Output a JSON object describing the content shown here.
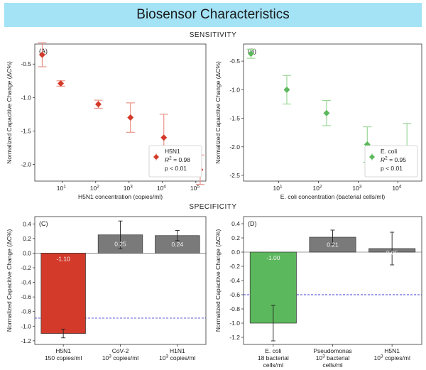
{
  "header": {
    "title": "Biosensor Characteristics"
  },
  "sections": {
    "top": "SENSITIVITY",
    "bottom": "SPECIFICITY"
  },
  "colors": {
    "red": "#d33a2a",
    "red_light": "#e88a80",
    "green": "#5cb85c",
    "green_light": "#94d48f",
    "gray": "#7a7a7a",
    "blue_dash": "#3f3fd8"
  },
  "chart_data": [
    {
      "type": "scatter",
      "panel_label": "(A)",
      "xlabel": "H5N1 concentration (copies/ml)",
      "ylabel": "Normalized Capacitive Change (ΔC%)",
      "xscale": "log",
      "xlim": [
        1.5,
        200000
      ],
      "ylim": [
        -0.2,
        -2.25
      ],
      "yticks": [
        -0.5,
        -1.0,
        -1.5,
        -2.0
      ],
      "ytick_labels": [
        "-0.5",
        "-1.0",
        "-1.5",
        "-2.0"
      ],
      "xticks": [
        10,
        100,
        1000,
        10000,
        100000
      ],
      "xtick_labels": [
        "10^1",
        "10^2",
        "10^3",
        "10^4",
        "10^5"
      ],
      "series": [
        {
          "name": "H5N1",
          "x": [
            2.5,
            9,
            120,
            1100,
            11000,
            135000
          ],
          "y": [
            -0.36,
            -0.79,
            -1.1,
            -1.3,
            -1.6,
            -2.08
          ],
          "err": [
            0.18,
            0.04,
            0.06,
            0.22,
            0.35,
            0.22
          ]
        }
      ],
      "legend": {
        "label": "H5N1",
        "r2_label": "R",
        "r2_value": " = 0.98",
        "p_label": "p < 0.01",
        "position": "lower right"
      }
    },
    {
      "type": "scatter",
      "panel_label": "(B)",
      "xlabel": "E. coli concentration (bacterial cells/ml)",
      "ylabel": "Normalized Capacitive Change (ΔC%)",
      "xscale": "log",
      "xlim": [
        1.3,
        40000
      ],
      "ylim": [
        -0.2,
        -2.6
      ],
      "yticks": [
        -0.5,
        -1.0,
        -1.5,
        -2.0,
        -2.5
      ],
      "ytick_labels": [
        "-0.5",
        "-1.0",
        "-1.5",
        "-2.0",
        "-2.5"
      ],
      "xticks": [
        10,
        100,
        1000,
        10000
      ],
      "xtick_labels": [
        "10^1",
        "10^2",
        "10^3",
        "10^4"
      ],
      "series": [
        {
          "name": "E. coli",
          "x": [
            2,
            16,
            160,
            1700,
            17000
          ],
          "y": [
            -0.37,
            -1.0,
            -1.41,
            -1.96,
            -2.03
          ],
          "err": [
            0.08,
            0.25,
            0.22,
            0.31,
            0.44
          ]
        }
      ],
      "legend": {
        "label": "E. coli",
        "r2_label": "R",
        "r2_value": " = 0.95",
        "p_label": "p < 0.01",
        "position": "lower right"
      }
    },
    {
      "type": "bar",
      "panel_label": "(C)",
      "ylabel": "Normalized Capacitive Change (ΔC%)",
      "categories": [
        [
          "H5N1",
          "150 copies/ml"
        ],
        [
          "CoV-2",
          "10^3 copies/ml"
        ],
        [
          "H1N1",
          "10^3 copies/ml"
        ]
      ],
      "values": [
        -1.1,
        0.25,
        0.24
      ],
      "data_labels": [
        "-1.10",
        "0.25",
        "0.24"
      ],
      "err": [
        0.06,
        0.19,
        0.07
      ],
      "colors": [
        "#d33a2a",
        "#7a7a7a",
        "#7a7a7a"
      ],
      "threshold": -0.89,
      "ylim": [
        0.5,
        -1.25
      ],
      "yticks": [
        0.4,
        0.2,
        0.0,
        -0.2,
        -0.4,
        -0.6,
        -0.8,
        -1.0,
        -1.2
      ],
      "ytick_labels": [
        "0.4",
        "0.2",
        "0.0",
        "-0.2",
        "-0.4",
        "-0.6",
        "-0.8",
        "-1.0",
        "-1.2"
      ]
    },
    {
      "type": "bar",
      "panel_label": "(D)",
      "ylabel": "Normalized Capacitive Change (ΔC%)",
      "categories": [
        [
          "E. coli",
          "18 bacterial",
          "cells/ml"
        ],
        [
          "Pseudomonas",
          "10^3 bacterial",
          "cells/ml"
        ],
        [
          "H5N1",
          "10^3 copies/ml"
        ]
      ],
      "values": [
        -1.0,
        0.21,
        0.05
      ],
      "data_labels": [
        "-1.00",
        "0.21",
        "0.05"
      ],
      "err": [
        0.25,
        0.1,
        0.23
      ],
      "colors": [
        "#5cb85c",
        "#7a7a7a",
        "#7a7a7a"
      ],
      "threshold": -0.6,
      "ylim": [
        0.5,
        -1.3
      ],
      "yticks": [
        0.4,
        0.2,
        0.0,
        -0.2,
        -0.4,
        -0.6,
        -0.8,
        -1.0,
        -1.2
      ],
      "ytick_labels": [
        "0.4",
        "0.2",
        "0.0",
        "-0.2",
        "-0.4",
        "-0.6",
        "-0.8",
        "-1.0",
        "-1.2"
      ]
    }
  ]
}
